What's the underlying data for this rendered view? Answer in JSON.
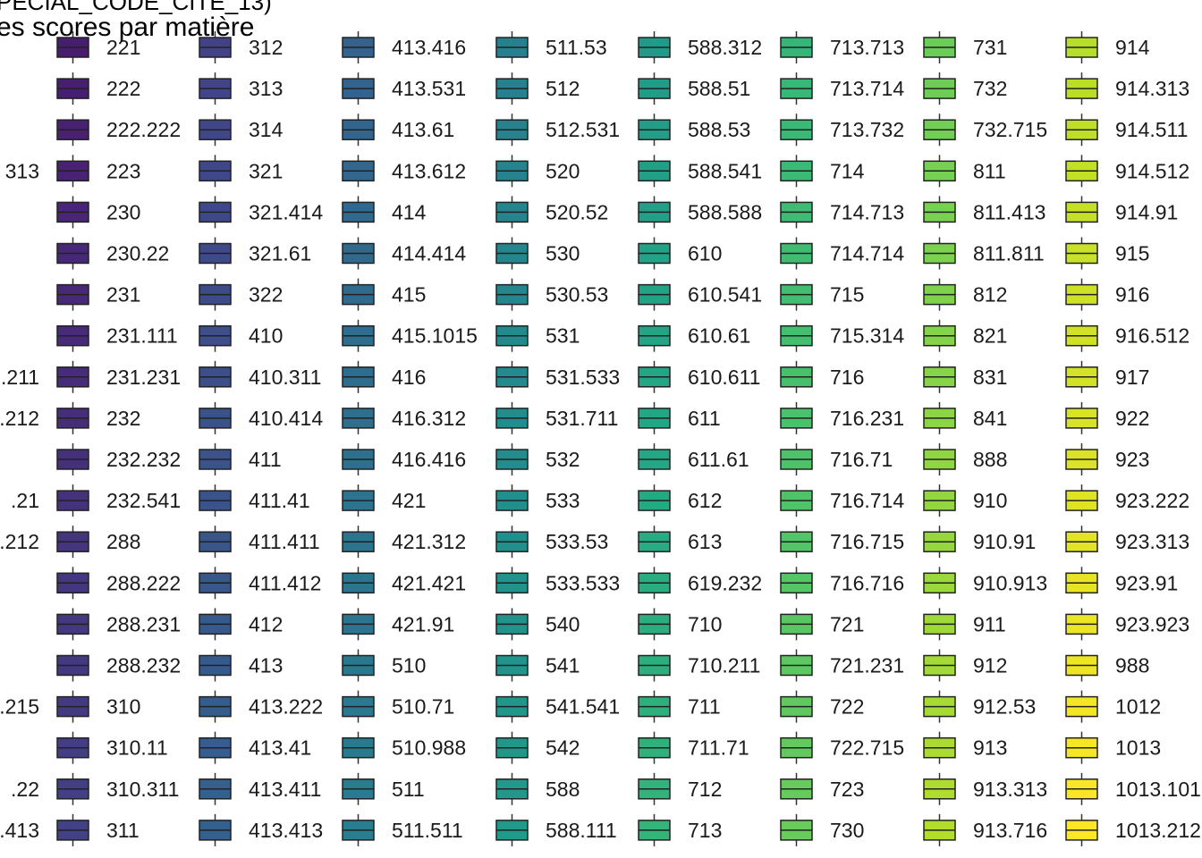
{
  "chart_data": {
    "type": "legend",
    "title_line1": "PECIAL_CODE_CITE_13)",
    "title_line2": "es scores par matière",
    "partial_labels": [
      "313",
      ".211",
      ".212",
      ".21",
      ".212",
      ".215",
      ".22",
      ".413"
    ],
    "palette": "viridis",
    "columns": [
      [
        "221",
        "222",
        "222.222",
        "223",
        "230",
        "230.22",
        "231",
        "231.111",
        "231.231",
        "232",
        "232.232",
        "232.541",
        "288",
        "288.222",
        "288.231",
        "288.232",
        "310",
        "310.11",
        "310.311",
        "311"
      ],
      [
        "312",
        "313",
        "314",
        "321",
        "321.414",
        "321.61",
        "322",
        "410",
        "410.311",
        "410.414",
        "411",
        "411.41",
        "411.411",
        "411.412",
        "412",
        "413",
        "413.222",
        "413.41",
        "413.411",
        "413.413"
      ],
      [
        "413.416",
        "413.531",
        "413.61",
        "413.612",
        "414",
        "414.414",
        "415",
        "415.1015",
        "416",
        "416.312",
        "416.416",
        "421",
        "421.312",
        "421.421",
        "421.91",
        "510",
        "510.71",
        "510.988",
        "511",
        "511.511"
      ],
      [
        "511.53",
        "512",
        "512.531",
        "520",
        "520.52",
        "530",
        "530.53",
        "531",
        "531.533",
        "531.711",
        "532",
        "533",
        "533.53",
        "533.533",
        "540",
        "541",
        "541.541",
        "542",
        "588",
        "588.111"
      ],
      [
        "588.312",
        "588.51",
        "588.53",
        "588.541",
        "588.588",
        "610",
        "610.541",
        "610.61",
        "610.611",
        "611",
        "611.61",
        "612",
        "613",
        "619.232",
        "710",
        "710.211",
        "711",
        "711.71",
        "712",
        "713"
      ],
      [
        "713.713",
        "713.714",
        "713.732",
        "714",
        "714.713",
        "714.714",
        "715",
        "715.314",
        "716",
        "716.231",
        "716.71",
        "716.714",
        "716.715",
        "716.716",
        "721",
        "721.231",
        "722",
        "722.715",
        "723",
        "730"
      ],
      [
        "731",
        "732",
        "732.715",
        "811",
        "811.413",
        "811.811",
        "812",
        "821",
        "831",
        "841",
        "888",
        "910",
        "910.91",
        "910.913",
        "911",
        "912",
        "912.53",
        "913",
        "913.313",
        "913.716"
      ],
      [
        "914",
        "914.313",
        "914.511",
        "914.512",
        "914.91",
        "915",
        "916",
        "916.512",
        "917",
        "922",
        "923",
        "923.222",
        "923.313",
        "923.91",
        "923.923",
        "988",
        "1012",
        "1013",
        "1013.101",
        "1013.212"
      ]
    ]
  }
}
